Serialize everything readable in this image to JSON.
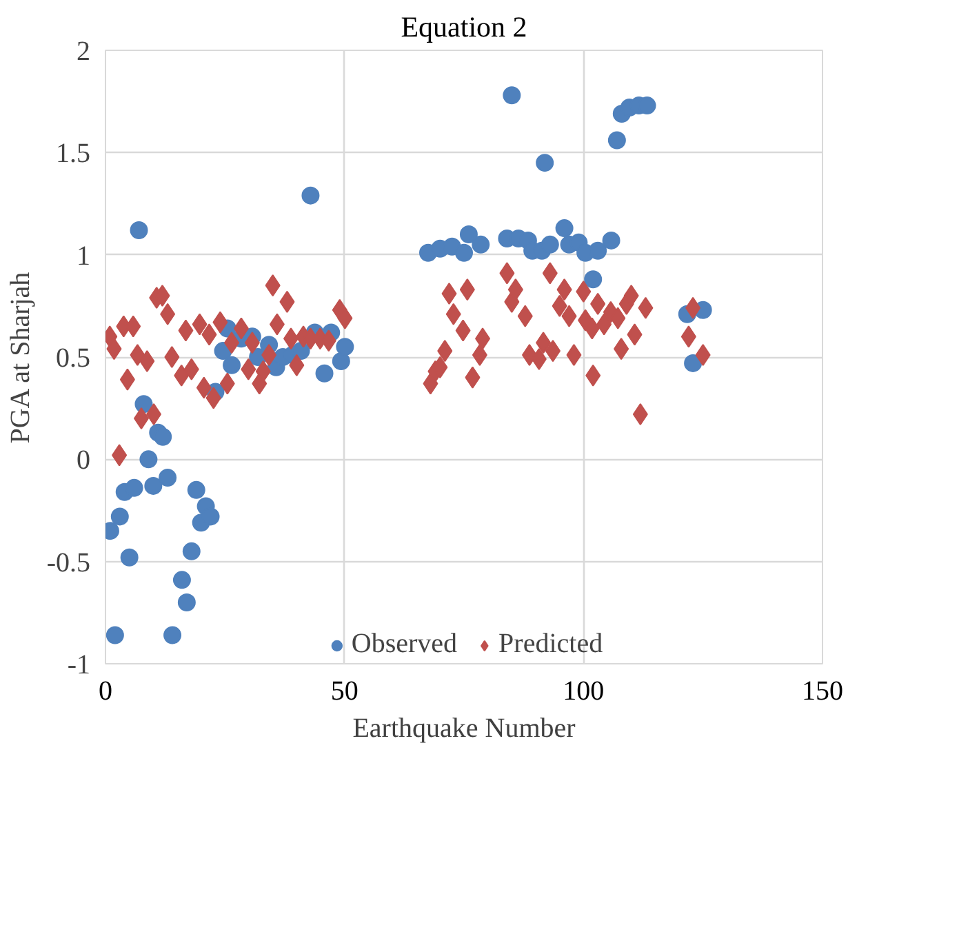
{
  "chart_data": {
    "type": "scatter",
    "title": "Equation 2",
    "xlabel": "Earthquake Number",
    "ylabel": "PGA at Sharjah",
    "xlim": [
      0,
      150
    ],
    "xticks": [
      0,
      50,
      100,
      150
    ],
    "ylim": [
      -1,
      2
    ],
    "yticks": [
      -1,
      -0.5,
      0,
      0.5,
      1,
      1.5,
      2
    ],
    "grid": true,
    "legend": "bottom",
    "series": [
      {
        "name": "Observed",
        "color": "#4f81bd",
        "marker": "circle",
        "x": [
          1,
          2,
          3,
          4,
          5,
          6,
          7,
          8,
          9,
          10,
          11,
          12,
          13,
          14,
          16,
          17,
          18,
          19,
          20,
          21,
          22,
          23,
          24.6,
          25.5,
          26.4,
          28.4,
          30.7,
          31.9,
          34.2,
          35.7,
          37.1,
          39.1,
          40.9,
          42.9,
          43.8,
          45.8,
          47.2,
          49.3,
          50.1,
          67.5,
          70,
          72.5,
          75,
          76,
          78.5,
          84,
          85,
          86.4,
          88.4,
          89.3,
          91.3,
          91.9,
          93,
          96,
          97,
          99,
          100.4,
          102,
          103,
          105.8,
          107,
          108,
          109.6,
          111.6,
          113.3,
          121.7,
          122.9,
          125
        ],
        "values": [
          -0.35,
          -0.86,
          -0.28,
          -0.16,
          -0.48,
          -0.14,
          1.12,
          0.27,
          0.0,
          -0.13,
          0.13,
          0.11,
          -0.09,
          -0.86,
          -0.59,
          -0.7,
          -0.45,
          -0.15,
          -0.31,
          -0.23,
          -0.28,
          0.33,
          0.53,
          0.64,
          0.46,
          0.59,
          0.6,
          0.5,
          0.56,
          0.45,
          0.5,
          0.51,
          0.53,
          1.29,
          0.62,
          0.42,
          0.62,
          0.48,
          0.55,
          1.01,
          1.03,
          1.04,
          1.01,
          1.1,
          1.05,
          1.08,
          1.78,
          1.08,
          1.07,
          1.02,
          1.02,
          1.45,
          1.05,
          1.13,
          1.05,
          1.06,
          1.01,
          0.88,
          1.02,
          1.07,
          1.56,
          1.69,
          1.72,
          1.73,
          1.73,
          0.71,
          0.47,
          0.73
        ]
      },
      {
        "name": "Predicted",
        "color": "#c0504d",
        "marker": "diamond",
        "x": [
          0.9,
          1.8,
          2.9,
          3.8,
          4.6,
          5.8,
          6.7,
          7.5,
          8.7,
          10.1,
          10.7,
          11.9,
          13,
          13.9,
          15.9,
          16.8,
          18,
          19.7,
          20.6,
          21.7,
          22.6,
          24,
          25.5,
          26.4,
          28.4,
          29.9,
          30.7,
          32.2,
          33,
          34.2,
          35,
          35.9,
          38,
          38.8,
          40,
          41.4,
          42.9,
          44.9,
          46.7,
          49,
          50.1,
          68,
          69,
          70,
          71,
          71.9,
          72.8,
          74.8,
          75.7,
          76.8,
          78.3,
          78.9,
          84,
          85,
          85.8,
          87.8,
          88.7,
          90.7,
          91.6,
          93,
          93.6,
          95,
          96,
          97,
          98,
          100,
          100.4,
          101.8,
          102,
          103,
          104.3,
          105.7,
          107.2,
          107.9,
          109,
          110,
          110.7,
          111.9,
          113,
          122,
          122.9,
          125
        ],
        "values": [
          0.6,
          0.54,
          0.02,
          0.65,
          0.39,
          0.65,
          0.51,
          0.2,
          0.48,
          0.22,
          0.79,
          0.8,
          0.71,
          0.5,
          0.41,
          0.63,
          0.44,
          0.66,
          0.35,
          0.61,
          0.3,
          0.67,
          0.37,
          0.57,
          0.64,
          0.44,
          0.57,
          0.37,
          0.43,
          0.51,
          0.85,
          0.66,
          0.77,
          0.59,
          0.46,
          0.6,
          0.59,
          0.59,
          0.58,
          0.73,
          0.69,
          0.37,
          0.43,
          0.45,
          0.53,
          0.81,
          0.71,
          0.63,
          0.83,
          0.4,
          0.51,
          0.59,
          0.91,
          0.77,
          0.83,
          0.7,
          0.51,
          0.49,
          0.57,
          0.91,
          0.53,
          0.75,
          0.83,
          0.7,
          0.51,
          0.82,
          0.68,
          0.64,
          0.41,
          0.76,
          0.66,
          0.72,
          0.69,
          0.54,
          0.76,
          0.8,
          0.61,
          0.22,
          0.74,
          0.6,
          0.74,
          0.51
        ]
      }
    ]
  }
}
